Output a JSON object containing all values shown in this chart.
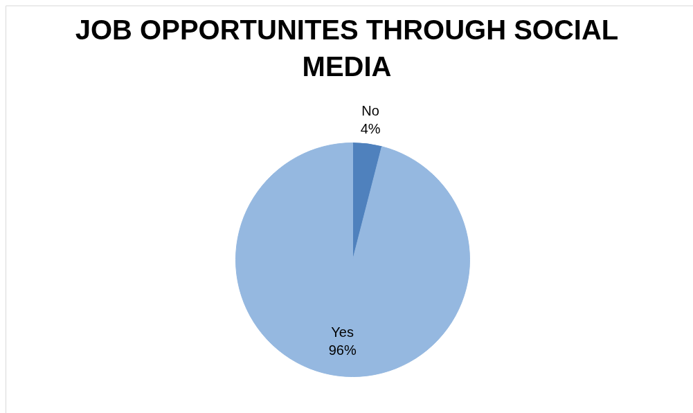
{
  "chart_data": {
    "type": "pie",
    "title": "JOB OPPORTUNITES THROUGH SOCIAL MEDIA",
    "categories": [
      "No",
      "Yes"
    ],
    "values": [
      4,
      96
    ],
    "colors": [
      "#4f81bd",
      "#95b8e0"
    ],
    "value_labels": [
      "4%",
      "96%"
    ],
    "legend": false
  }
}
